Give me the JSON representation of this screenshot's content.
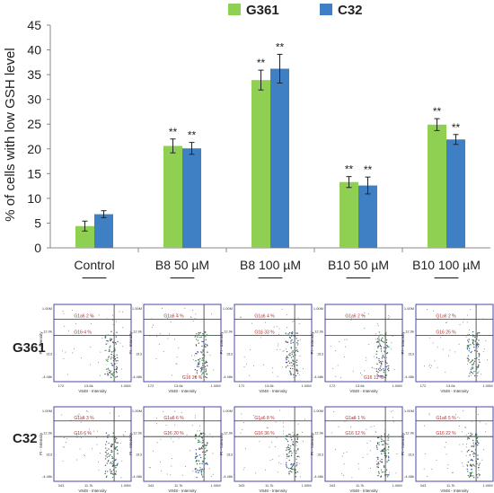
{
  "chart_data": {
    "type": "bar",
    "ylabel": "% of cells with low GSH level",
    "ylim": [
      0,
      45
    ],
    "yticks": [
      0,
      5,
      10,
      15,
      20,
      25,
      30,
      35,
      40,
      45
    ],
    "categories": [
      "Control",
      "B8 50 µM",
      "B8 100 µM",
      "B10 50 µM",
      "B10 100 µM"
    ],
    "series": [
      {
        "name": "G361",
        "color": "#8fcf52",
        "values": [
          4.4,
          20.6,
          33.9,
          13.3,
          24.9
        ],
        "errors": [
          1.0,
          1.4,
          2.0,
          1.1,
          1.2
        ]
      },
      {
        "name": "C32",
        "color": "#3f7fc3",
        "values": [
          6.8,
          20.1,
          36.2,
          12.6,
          21.9
        ],
        "errors": [
          0.7,
          1.2,
          2.9,
          1.7,
          1.0
        ]
      }
    ],
    "significance": [
      "",
      "**",
      "**",
      "**",
      "**"
    ],
    "legend_position": "top-right",
    "grid": false
  },
  "flow_panels": {
    "row_labels": [
      "G361",
      "C32"
    ],
    "x_axis_label": "V848 - Intensity",
    "y_axis_label": "PI - Intensity",
    "g361": [
      {
        "q_top": "G1a6 2 %",
        "q_mid": "G16 4 %",
        "q_low": ""
      },
      {
        "q_top": "G1a6 4 %",
        "q_mid": "",
        "q_low": "G16 20 %"
      },
      {
        "q_top": "G1a6 4 %",
        "q_mid": "G16 33 %",
        "q_low": ""
      },
      {
        "q_top": "G1a6 2 %",
        "q_mid": "",
        "q_low": "G16 13 %"
      },
      {
        "q_top": "G1a6 2 %",
        "q_mid": "G16 25 %",
        "q_low": ""
      }
    ],
    "c32": [
      {
        "q_top": "G1a6 3 %",
        "q_mid": "G16 6 %",
        "q_low": ""
      },
      {
        "q_top": "G1a6 6 %",
        "q_mid": "G16 20 %",
        "q_low": ""
      },
      {
        "q_top": "G1a6 8 %",
        "q_mid": "G16 36 %",
        "q_low": ""
      },
      {
        "q_top": "G1a6 1 %",
        "q_mid": "G16 12 %",
        "q_low": ""
      },
      {
        "q_top": "G1a6 5 %",
        "q_mid": "G16 22 %",
        "q_low": ""
      }
    ],
    "y_ticks": [
      "1.00M",
      "12.0k",
      "313",
      "-4.48k"
    ],
    "x_ticks_g361": [
      "172",
      "13.6k",
      "1.00M"
    ],
    "x_ticks_c32": [
      "343",
      "11.7k",
      "1.00M"
    ]
  }
}
